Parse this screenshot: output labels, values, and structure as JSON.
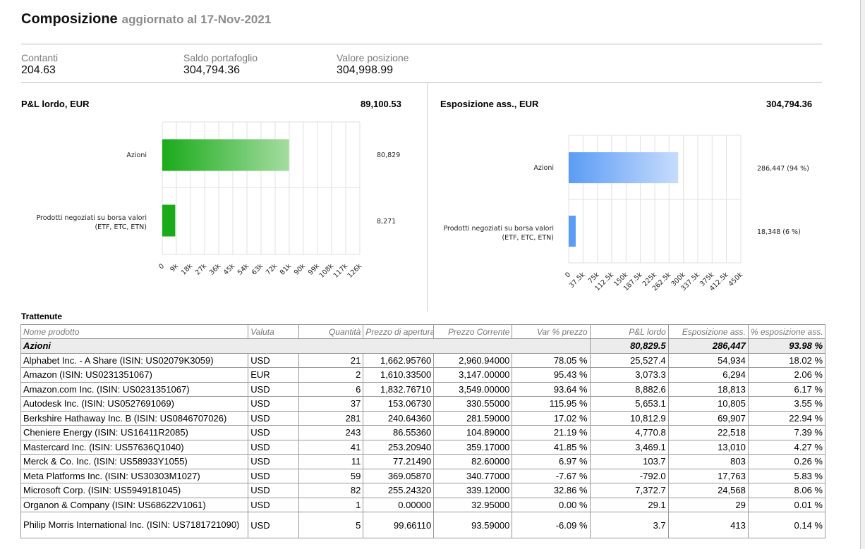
{
  "header": {
    "title": "Composizione",
    "subtitle": "aggiornato al 17-Nov-2021"
  },
  "summary": [
    {
      "label": "Contanti",
      "value": "204.63"
    },
    {
      "label": "Saldo portafoglio",
      "value": "304,794.36"
    },
    {
      "label": "Valore posizione",
      "value": "304,998.99"
    }
  ],
  "colors": {
    "green": "#1aab1a",
    "green_light": "#a4dca0",
    "blue": "#5b9cf5",
    "blue_light": "#c7dcfc"
  },
  "chart_data": [
    {
      "type": "bar",
      "orientation": "horizontal",
      "title": "P&L lordo, EUR",
      "total": "89,100.53",
      "categories": [
        "Azioni",
        "Prodotti negoziati su borsa valori (ETF, ETC, ETN)"
      ],
      "values": [
        80829,
        8271
      ],
      "value_labels": [
        "80,829",
        "8,271"
      ],
      "ticks": [
        "0",
        "9k",
        "18k",
        "27k",
        "36k",
        "45k",
        "54k",
        "63k",
        "72k",
        "81k",
        "90k",
        "99k",
        "108k",
        "117k",
        "126k"
      ],
      "xlim": [
        0,
        126000
      ],
      "grid": true
    },
    {
      "type": "bar",
      "orientation": "horizontal",
      "title": "Esposizione ass., EUR",
      "total": "304,794.36",
      "categories": [
        "Azioni",
        "Prodotti negoziati su borsa valori (ETF, ETC, ETN)"
      ],
      "values": [
        286447,
        18348
      ],
      "value_labels": [
        "286,447 (94 %)",
        "18,348 (6 %)"
      ],
      "ticks": [
        "0",
        "37.5k",
        "75k",
        "112.5k",
        "150k",
        "187.5k",
        "225k",
        "262.5k",
        "300k",
        "337.5k",
        "375k",
        "412.5k",
        "450k"
      ],
      "xlim": [
        0,
        450000
      ],
      "grid": true
    }
  ],
  "table": {
    "title": "Trattenute",
    "headers": [
      "Nome prodotto",
      "Valuta",
      "Quantità",
      "Prezzo di apertura",
      "Prezzo Corrente",
      "Var % prezzo",
      "P&L lordo",
      "Esposizione ass.",
      "% esposizione ass."
    ],
    "group": {
      "name": "Azioni",
      "pl": "80,829.5",
      "exposure": "286,447",
      "pct": "93.98 %"
    },
    "rows": [
      [
        "Alphabet Inc. - A Share (ISIN: US02079K3059)",
        "USD",
        "21",
        "1,662.95760",
        "2,960.94000",
        "78.05 %",
        "25,527.4",
        "54,934",
        "18.02 %"
      ],
      [
        "Amazon (ISIN: US0231351067)",
        "EUR",
        "2",
        "1,610.33500",
        "3,147.00000",
        "95.43 %",
        "3,073.3",
        "6,294",
        "2.06 %"
      ],
      [
        "Amazon.com Inc. (ISIN: US0231351067)",
        "USD",
        "6",
        "1,832.76710",
        "3,549.00000",
        "93.64 %",
        "8,882.6",
        "18,813",
        "6.17 %"
      ],
      [
        "Autodesk Inc. (ISIN: US0527691069)",
        "USD",
        "37",
        "153.06730",
        "330.55000",
        "115.95 %",
        "5,653.1",
        "10,805",
        "3.55 %"
      ],
      [
        "Berkshire Hathaway Inc. B (ISIN: US0846707026)",
        "USD",
        "281",
        "240.64360",
        "281.59000",
        "17.02 %",
        "10,812.9",
        "69,907",
        "22.94 %"
      ],
      [
        "Cheniere Energy (ISIN: US16411R2085)",
        "USD",
        "243",
        "86.55360",
        "104.89000",
        "21.19 %",
        "4,770.8",
        "22,518",
        "7.39 %"
      ],
      [
        "Mastercard Inc. (ISIN: US57636Q1040)",
        "USD",
        "41",
        "253.20940",
        "359.17000",
        "41.85 %",
        "3,469.1",
        "13,010",
        "4.27 %"
      ],
      [
        "Merck & Co. Inc. (ISIN: US58933Y1055)",
        "USD",
        "11",
        "77.21490",
        "82.60000",
        "6.97 %",
        "103.7",
        "803",
        "0.26 %"
      ],
      [
        "Meta Platforms Inc. (ISIN: US30303M1027)",
        "USD",
        "59",
        "369.05870",
        "340.77000",
        "-7.67 %",
        "-792.0",
        "17,763",
        "5.83 %"
      ],
      [
        "Microsoft Corp. (ISIN: US5949181045)",
        "USD",
        "82",
        "255.24320",
        "339.12000",
        "32.86 %",
        "7,372.7",
        "24,568",
        "8.06 %"
      ],
      [
        "Organon & Company (ISIN: US68622V1061)",
        "USD",
        "1",
        "0.00000",
        "32.95000",
        "0.00 %",
        "29.1",
        "29",
        "0.01 %"
      ],
      [
        "Philip Morris International Inc. (ISIN: US7181721090)",
        "USD",
        "5",
        "99.66110",
        "93.59000",
        "-6.09 %",
        "3.7",
        "413",
        "0.14 %"
      ]
    ]
  }
}
